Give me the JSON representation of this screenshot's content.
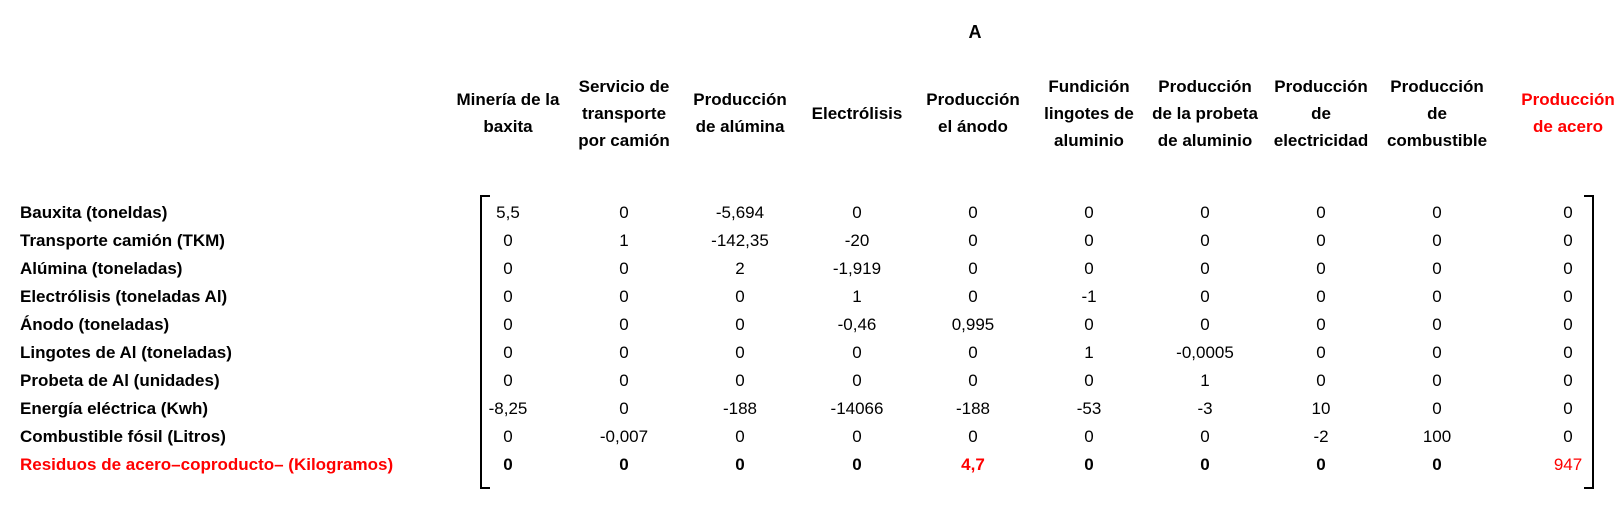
{
  "matrix_title": "A",
  "columns": [
    {
      "label": "Minería de la baxita",
      "color": "#000000"
    },
    {
      "label": "Servicio de transporte por camión",
      "color": "#000000"
    },
    {
      "label": "Producción de alúmina",
      "color": "#000000"
    },
    {
      "label": "Electrólisis",
      "color": "#000000"
    },
    {
      "label": "Producción el ánodo",
      "color": "#000000"
    },
    {
      "label": "Fundición lingotes de aluminio",
      "color": "#000000"
    },
    {
      "label": "Producción de la probeta de aluminio",
      "color": "#000000"
    },
    {
      "label": "Producción de electricidad",
      "color": "#000000"
    },
    {
      "label": "Producción de combustible",
      "color": "#000000"
    },
    {
      "label": "Producción de acero",
      "color": "#ff0000"
    }
  ],
  "rows": [
    {
      "label": "Bauxita (toneldas)",
      "values": [
        "5,5",
        "0",
        "-5,694",
        "0",
        "0",
        "0",
        "0",
        "0",
        "0",
        "0"
      ]
    },
    {
      "label": "Transporte camión (TKM)",
      "values": [
        "0",
        "1",
        "-142,35",
        "-20",
        "0",
        "0",
        "0",
        "0",
        "0",
        "0"
      ]
    },
    {
      "label": "Alúmina (toneladas)",
      "values": [
        "0",
        "0",
        "2",
        "-1,919",
        "0",
        "0",
        "0",
        "0",
        "0",
        "0"
      ]
    },
    {
      "label": "Electrólisis (toneladas Al)",
      "values": [
        "0",
        "0",
        "0",
        "1",
        "0",
        "-1",
        "0",
        "0",
        "0",
        "0"
      ]
    },
    {
      "label": "Ánodo (toneladas)",
      "values": [
        "0",
        "0",
        "0",
        "-0,46",
        "0,995",
        "0",
        "0",
        "0",
        "0",
        "0"
      ]
    },
    {
      "label": "Lingotes de Al (toneladas)",
      "values": [
        "0",
        "0",
        "0",
        "0",
        "0",
        "1",
        "-0,0005",
        "0",
        "0",
        "0"
      ]
    },
    {
      "label": "Probeta de Al (unidades)",
      "values": [
        "0",
        "0",
        "0",
        "0",
        "0",
        "0",
        "1",
        "0",
        "0",
        "0"
      ]
    },
    {
      "label": "Energía eléctrica (Kwh)",
      "values": [
        "-8,25",
        "0",
        "-188",
        "-14066",
        "-188",
        "-53",
        "-3",
        "10",
        "0",
        "0"
      ]
    },
    {
      "label": "Combustible fósil (Litros)",
      "values": [
        "0",
        "-0,007",
        "0",
        "0",
        "0",
        "0",
        "0",
        "-2",
        "100",
        "0"
      ]
    },
    {
      "label": "Residuos de acero–coproducto– (Kilogramos)",
      "values": [
        "0",
        "0",
        "0",
        "0",
        "4,7",
        "0",
        "0",
        "0",
        "0",
        "947"
      ]
    }
  ],
  "accent_color": "#ff0000"
}
